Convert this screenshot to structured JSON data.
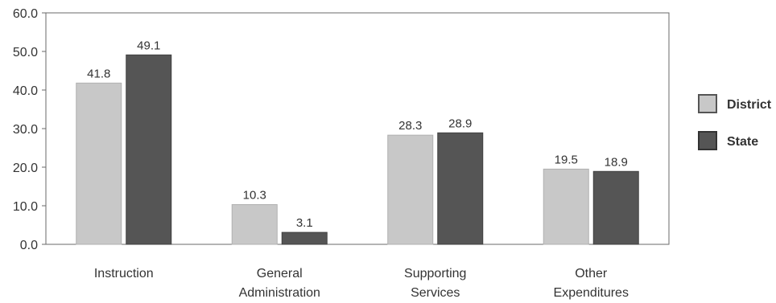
{
  "chart_data": {
    "type": "bar",
    "categories": [
      [
        "Instruction"
      ],
      [
        "General",
        "Administration"
      ],
      [
        "Supporting",
        "Services"
      ],
      [
        "Other",
        "Expenditures"
      ]
    ],
    "series": [
      {
        "name": "District",
        "values": [
          41.8,
          10.3,
          28.3,
          19.5
        ],
        "labels": [
          "41.8",
          "10.3",
          "28.3",
          "19.5"
        ],
        "color": "#c8c8c8"
      },
      {
        "name": "State",
        "values": [
          49.1,
          3.1,
          28.9,
          18.9
        ],
        "labels": [
          "49.1",
          "3.1",
          "28.9",
          "18.9"
        ],
        "color": "#555555"
      }
    ],
    "ylim": [
      0,
      60
    ],
    "yticks": [
      "0.0",
      "10.0",
      "20.0",
      "30.0",
      "40.0",
      "50.0",
      "60.0"
    ],
    "grid": false,
    "legend_position": "right"
  }
}
